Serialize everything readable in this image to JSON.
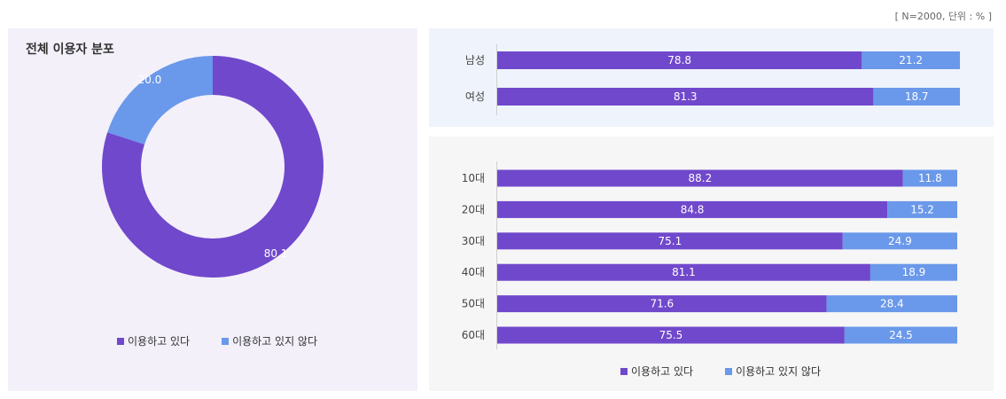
{
  "note": "[ N=2000, 단위 : % ]",
  "colors": {
    "using": "#7048cc",
    "not_using": "#6a98ea"
  },
  "legend": {
    "using": "이용하고 있다",
    "not_using": "이용하고 있지 않다"
  },
  "chart_data": [
    {
      "type": "pie",
      "style": "donut",
      "title": "전체 이용자 분포",
      "categories": [
        "이용하고 있다",
        "이용하고 있지 않다"
      ],
      "values": [
        80.1,
        20.0
      ],
      "legend_position": "bottom"
    },
    {
      "type": "bar",
      "orientation": "horizontal",
      "stacked": true,
      "categories": [
        "남성",
        "여성"
      ],
      "series": [
        {
          "name": "이용하고 있다",
          "values": [
            78.8,
            81.3
          ]
        },
        {
          "name": "이용하고 있지 않다",
          "values": [
            21.2,
            18.7
          ]
        }
      ],
      "xlim": [
        0,
        100
      ]
    },
    {
      "type": "bar",
      "orientation": "horizontal",
      "stacked": true,
      "categories": [
        "10대",
        "20대",
        "30대",
        "40대",
        "50대",
        "60대"
      ],
      "series": [
        {
          "name": "이용하고 있다",
          "values": [
            88.2,
            84.8,
            75.1,
            81.1,
            71.6,
            75.5
          ]
        },
        {
          "name": "이용하고 있지 않다",
          "values": [
            11.8,
            15.2,
            24.9,
            18.9,
            28.4,
            24.5
          ]
        }
      ],
      "xlim": [
        0,
        100
      ],
      "legend_position": "bottom"
    }
  ]
}
